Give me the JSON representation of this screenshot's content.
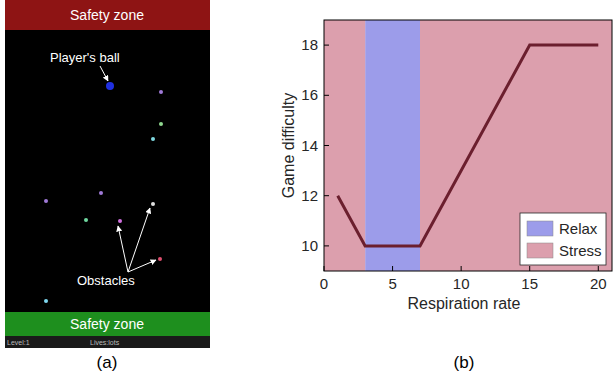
{
  "screenshot": {
    "top_zone": "Safety zone",
    "bottom_zone": "Safety zone",
    "status": {
      "level": "Level:1",
      "lives": "Lives:lots"
    },
    "annotations": {
      "ball": "Player's ball",
      "obstacles": "Obstacles"
    },
    "caption": "(a)"
  },
  "chart_caption": "(b)",
  "chart_data": {
    "type": "line",
    "x_label": "Respiration rate",
    "y_label": "Game difficulty",
    "x": [
      1,
      3,
      7,
      15,
      20
    ],
    "values": [
      12,
      10,
      10,
      18,
      18
    ],
    "color": "#6b1f2e",
    "xlim": [
      0,
      21
    ],
    "xticks": [
      0,
      5,
      10,
      15,
      20
    ],
    "ylim": [
      9,
      19
    ],
    "yticks": [
      10,
      12,
      14,
      16,
      18
    ],
    "bands": [
      {
        "name": "Relax",
        "color": "#9c9cea",
        "ranges": [
          [
            3,
            7
          ]
        ]
      },
      {
        "name": "Stress",
        "color": "#dc9fad",
        "ranges": [
          [
            0,
            3
          ],
          [
            7,
            21
          ]
        ]
      }
    ],
    "legend": "lower right",
    "grid": false
  }
}
